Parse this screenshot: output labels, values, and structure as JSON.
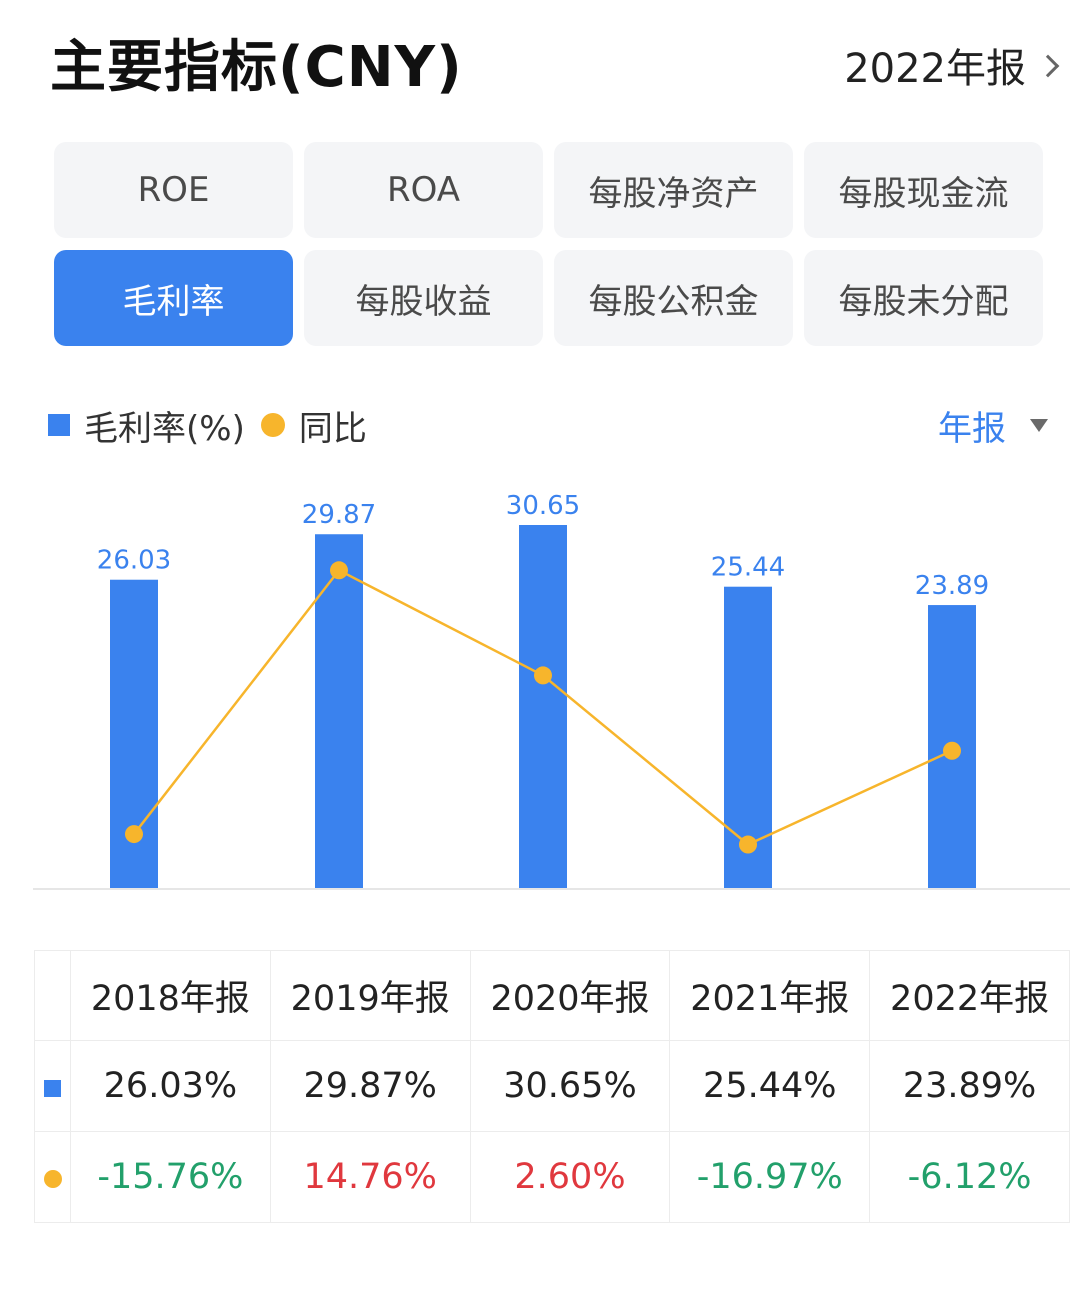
{
  "header": {
    "title": "主要指标(CNY)",
    "period": "2022年报"
  },
  "tabs": [
    {
      "label": "ROE",
      "active": false
    },
    {
      "label": "ROA",
      "active": false
    },
    {
      "label": "每股净资产",
      "active": false
    },
    {
      "label": "每股现金流",
      "active": false
    },
    {
      "label": "毛利率",
      "active": true
    },
    {
      "label": "每股收益",
      "active": false
    },
    {
      "label": "每股公积金",
      "active": false
    },
    {
      "label": "每股未分配",
      "active": false
    }
  ],
  "legend": {
    "series1": "毛利率(%)",
    "series2": "同比"
  },
  "frequency": "年报",
  "colors": {
    "bar": "#3a82ee",
    "line": "#f7b52c",
    "positive": "#e0383e",
    "negative": "#22a06b"
  },
  "chart_data": {
    "type": "bar",
    "categories": [
      "2018年报",
      "2019年报",
      "2020年报",
      "2021年报",
      "2022年报"
    ],
    "series": [
      {
        "name": "毛利率(%)",
        "type": "bar",
        "values": [
          26.03,
          29.87,
          30.65,
          25.44,
          23.89
        ]
      },
      {
        "name": "同比",
        "type": "line",
        "values": [
          -15.76,
          14.76,
          2.6,
          -16.97,
          -6.12
        ]
      }
    ],
    "bar_labels": [
      "26.03",
      "29.87",
      "30.65",
      "25.44",
      "23.89"
    ],
    "ylim_bar": [
      0,
      30.65
    ],
    "ylim_line": [
      -22,
      20
    ]
  },
  "table": {
    "headers": [
      "2018年报",
      "2019年报",
      "2020年报",
      "2021年报",
      "2022年报"
    ],
    "row1": [
      "26.03%",
      "29.87%",
      "30.65%",
      "25.44%",
      "23.89%"
    ],
    "row2": [
      "-15.76%",
      "14.76%",
      "2.60%",
      "-16.97%",
      "-6.12%"
    ]
  }
}
